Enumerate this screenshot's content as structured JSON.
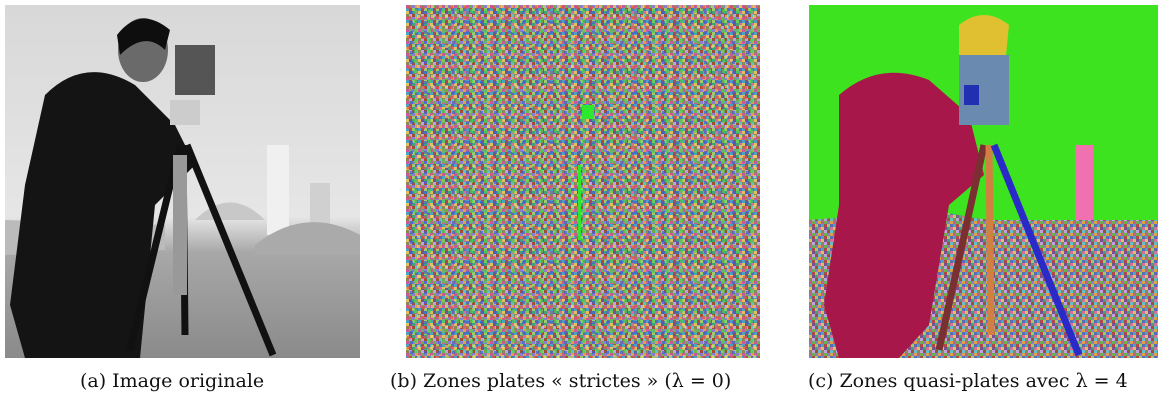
{
  "figures": [
    {
      "label": "(a)",
      "caption": "Image originale"
    },
    {
      "label": "(b)",
      "caption": "Zones plates « strictes » (λ = 0)"
    },
    {
      "label": "(c)",
      "caption": "Zones quasi-plates avec λ = 4"
    }
  ]
}
